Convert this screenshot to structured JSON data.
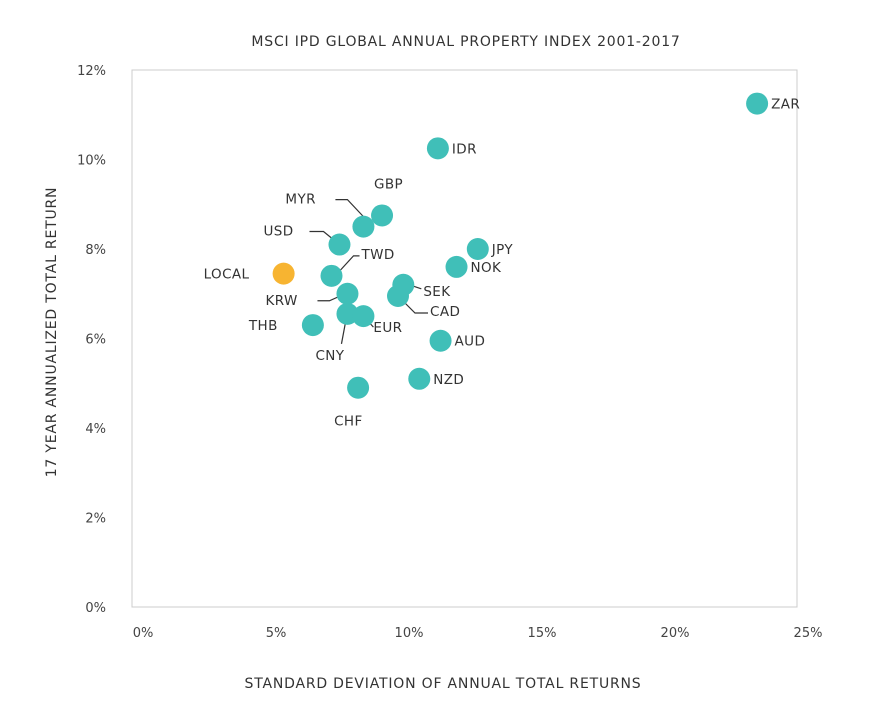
{
  "chart_data": {
    "type": "scatter",
    "title": "MSCI IPD GLOBAL ANNUAL PROPERTY INDEX 2001-2017",
    "xlabel": "STANDARD DEVIATION OF ANNUAL TOTAL RETURNS",
    "ylabel": "17 YEAR ANNUALIZED TOTAL RETURN",
    "xlim": [
      0,
      25
    ],
    "ylim": [
      0,
      12
    ],
    "x_ticks": [
      0,
      5,
      10,
      15,
      20,
      25
    ],
    "x_tick_labels": [
      "0%",
      "5%",
      "10%",
      "15%",
      "20%",
      "25%"
    ],
    "y_ticks": [
      0,
      2,
      4,
      6,
      8,
      10,
      12
    ],
    "y_tick_labels": [
      "0%",
      "2%",
      "4%",
      "6%",
      "8%",
      "10%",
      "12%"
    ],
    "grid": false,
    "colors": {
      "default": "#40bfb8",
      "highlight": "#f7b431",
      "frame": "#cccccc"
    },
    "points": [
      {
        "label": "ZAR",
        "x": 23.5,
        "y": 11.25
      },
      {
        "label": "IDR",
        "x": 11.5,
        "y": 10.25
      },
      {
        "label": "GBP",
        "x": 9.4,
        "y": 8.75
      },
      {
        "label": "MYR",
        "x": 8.7,
        "y": 8.5
      },
      {
        "label": "USD",
        "x": 7.8,
        "y": 8.1
      },
      {
        "label": "JPY",
        "x": 13.0,
        "y": 8.0
      },
      {
        "label": "NOK",
        "x": 12.2,
        "y": 7.6
      },
      {
        "label": "TWD",
        "x": 7.5,
        "y": 7.4
      },
      {
        "label": "LOCAL",
        "x": 5.7,
        "y": 7.45,
        "highlight": true
      },
      {
        "label": "SEK",
        "x": 10.2,
        "y": 7.2
      },
      {
        "label": "KRW",
        "x": 8.1,
        "y": 7.0
      },
      {
        "label": "CAD",
        "x": 10.0,
        "y": 6.95
      },
      {
        "label": "CNY",
        "x": 8.1,
        "y": 6.55
      },
      {
        "label": "EUR",
        "x": 8.7,
        "y": 6.5
      },
      {
        "label": "THB",
        "x": 6.8,
        "y": 6.3
      },
      {
        "label": "AUD",
        "x": 11.6,
        "y": 5.95
      },
      {
        "label": "NZD",
        "x": 10.8,
        "y": 5.1
      },
      {
        "label": "CHF",
        "x": 8.5,
        "y": 4.9
      }
    ]
  }
}
